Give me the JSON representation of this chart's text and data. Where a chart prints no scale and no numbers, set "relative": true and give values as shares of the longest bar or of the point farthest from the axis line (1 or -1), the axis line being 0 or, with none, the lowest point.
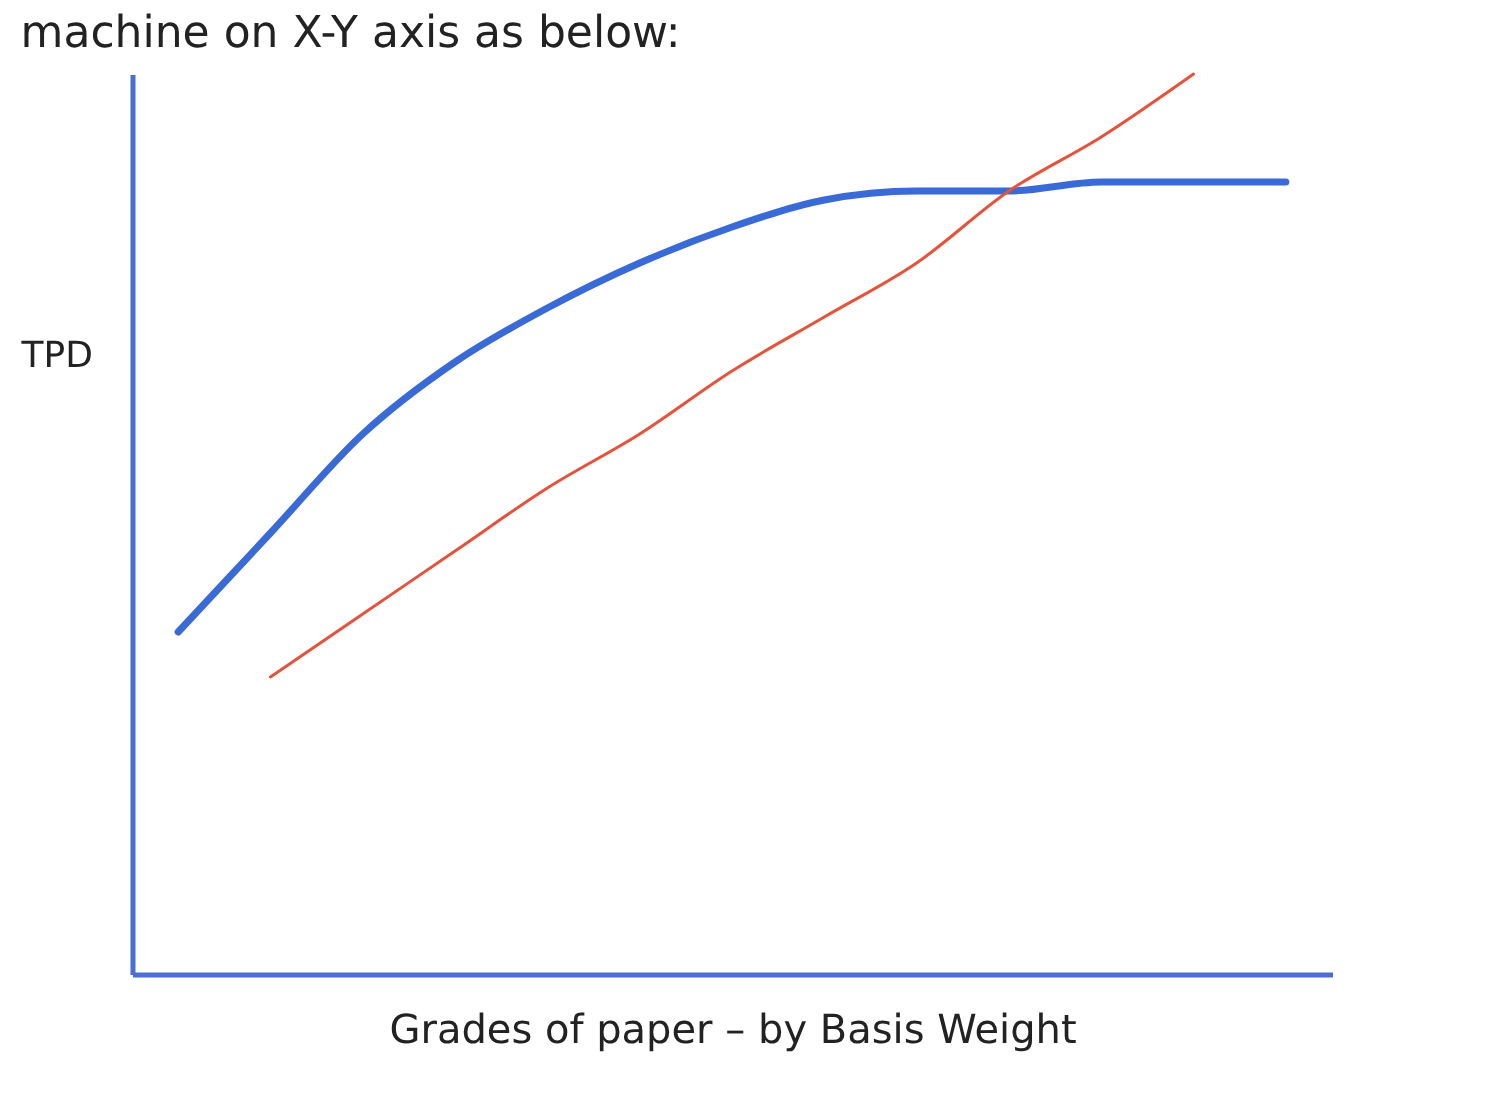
{
  "chart_data": {
    "type": "line",
    "title": "machine on X-Y axis as below:",
    "xlabel": "Grades of paper – by Basis Weight",
    "ylabel": "TPD",
    "relative": true,
    "categories": [
      null,
      null,
      null,
      null,
      null,
      null,
      null,
      null,
      null,
      null,
      null,
      null,
      null
    ],
    "series": [
      {
        "color": "#3a6ad6",
        "values": [
          0.38,
          0.49,
          0.6,
          0.68,
          0.74,
          0.79,
          0.83,
          0.86,
          0.87,
          0.87,
          0.88,
          0.88,
          0.88
        ]
      },
      {
        "color": "#e5533c",
        "values": [
          null,
          0.33,
          0.4,
          0.47,
          0.54,
          0.6,
          0.67,
          0.73,
          0.79,
          0.87,
          0.93,
          1.0,
          null
        ]
      }
    ]
  }
}
